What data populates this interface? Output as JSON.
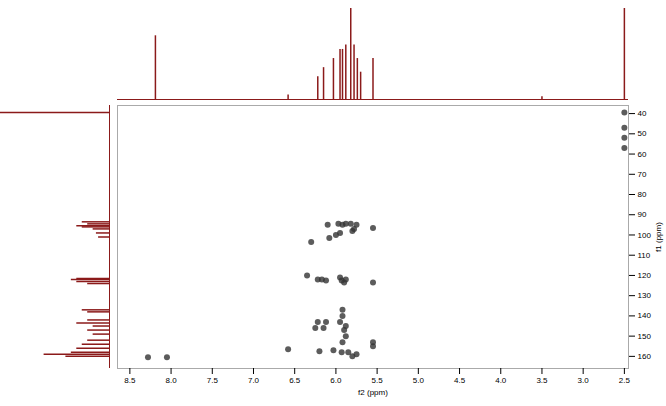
{
  "chart_data": {
    "type": "scatter",
    "xlabel": "f2 (ppm)",
    "ylabel": "f1 (ppm)",
    "xlim": [
      8.65,
      2.45
    ],
    "ylim": [
      36,
      166
    ],
    "xticks": [
      8.5,
      {
        "value": 8,
        "label": "8.0"
      },
      7.5,
      {
        "value": 7,
        "label": "7.0"
      },
      6.5,
      {
        "value": 6,
        "label": "6.0"
      },
      5.5,
      {
        "value": 5,
        "label": "5.0"
      },
      4.5,
      {
        "value": 4,
        "label": "4.0"
      },
      3.5,
      {
        "value": 3,
        "label": "3.0"
      },
      2.5
    ],
    "yticks": [
      40,
      50,
      60,
      70,
      80,
      90,
      100,
      110,
      120,
      130,
      140,
      150,
      160
    ],
    "grid": false,
    "color": "#333333",
    "x": [
      2.5,
      2.5,
      2.5,
      2.5,
      8.28,
      8.05,
      6.1,
      5.97,
      5.92,
      5.88,
      5.82,
      5.75,
      5.55,
      5.78,
      5.8,
      6.0,
      5.95,
      6.3,
      6.08,
      6.35,
      6.22,
      6.17,
      6.12,
      5.93,
      5.9,
      5.88,
      5.55,
      5.95,
      5.92,
      5.92,
      5.95,
      5.88,
      5.9,
      5.88,
      5.92,
      5.55,
      5.55,
      6.22,
      6.25,
      6.12,
      6.15,
      5.93,
      5.85,
      5.8,
      5.75,
      6.03,
      6.58,
      6.2
    ],
    "values": [
      39.5,
      47,
      52,
      57,
      160.5,
      160.5,
      95,
      94.5,
      95,
      94.5,
      94.5,
      95,
      96.5,
      97,
      98,
      100,
      99,
      103.5,
      101.5,
      120,
      122,
      122,
      122.5,
      122.5,
      123.5,
      122,
      123.5,
      121,
      137,
      140,
      143,
      145,
      147,
      150,
      153,
      153,
      155,
      143,
      146,
      143,
      146,
      158,
      158,
      160,
      159,
      157,
      156.5,
      157.5
    ],
    "top_spectrum": {
      "color": "#8b1a1a",
      "x": [
        8.19,
        6.58,
        6.22,
        6.15,
        6.03,
        5.95,
        5.92,
        5.88,
        5.82,
        5.78,
        5.74,
        5.7,
        5.55,
        3.5,
        2.5
      ],
      "values": [
        0.7,
        0.05,
        0.25,
        0.35,
        0.45,
        0.55,
        0.55,
        0.6,
        1.0,
        0.6,
        0.45,
        0.3,
        0.45,
        0.03,
        1.0
      ]
    },
    "side_spectrum": {
      "color": "#8b1a1a",
      "y": [
        39.5,
        93.5,
        94.5,
        95.5,
        96,
        97,
        99,
        101,
        121.5,
        122,
        123,
        124,
        137,
        138,
        142,
        143.5,
        145,
        147,
        149,
        152,
        154,
        156,
        158,
        159,
        160
      ],
      "values": [
        1.0,
        0.25,
        0.2,
        0.3,
        0.25,
        0.15,
        0.12,
        0.1,
        0.3,
        0.35,
        0.3,
        0.2,
        0.25,
        0.2,
        0.2,
        0.3,
        0.15,
        0.2,
        0.15,
        0.2,
        0.25,
        0.3,
        0.35,
        0.6,
        0.4
      ]
    }
  }
}
